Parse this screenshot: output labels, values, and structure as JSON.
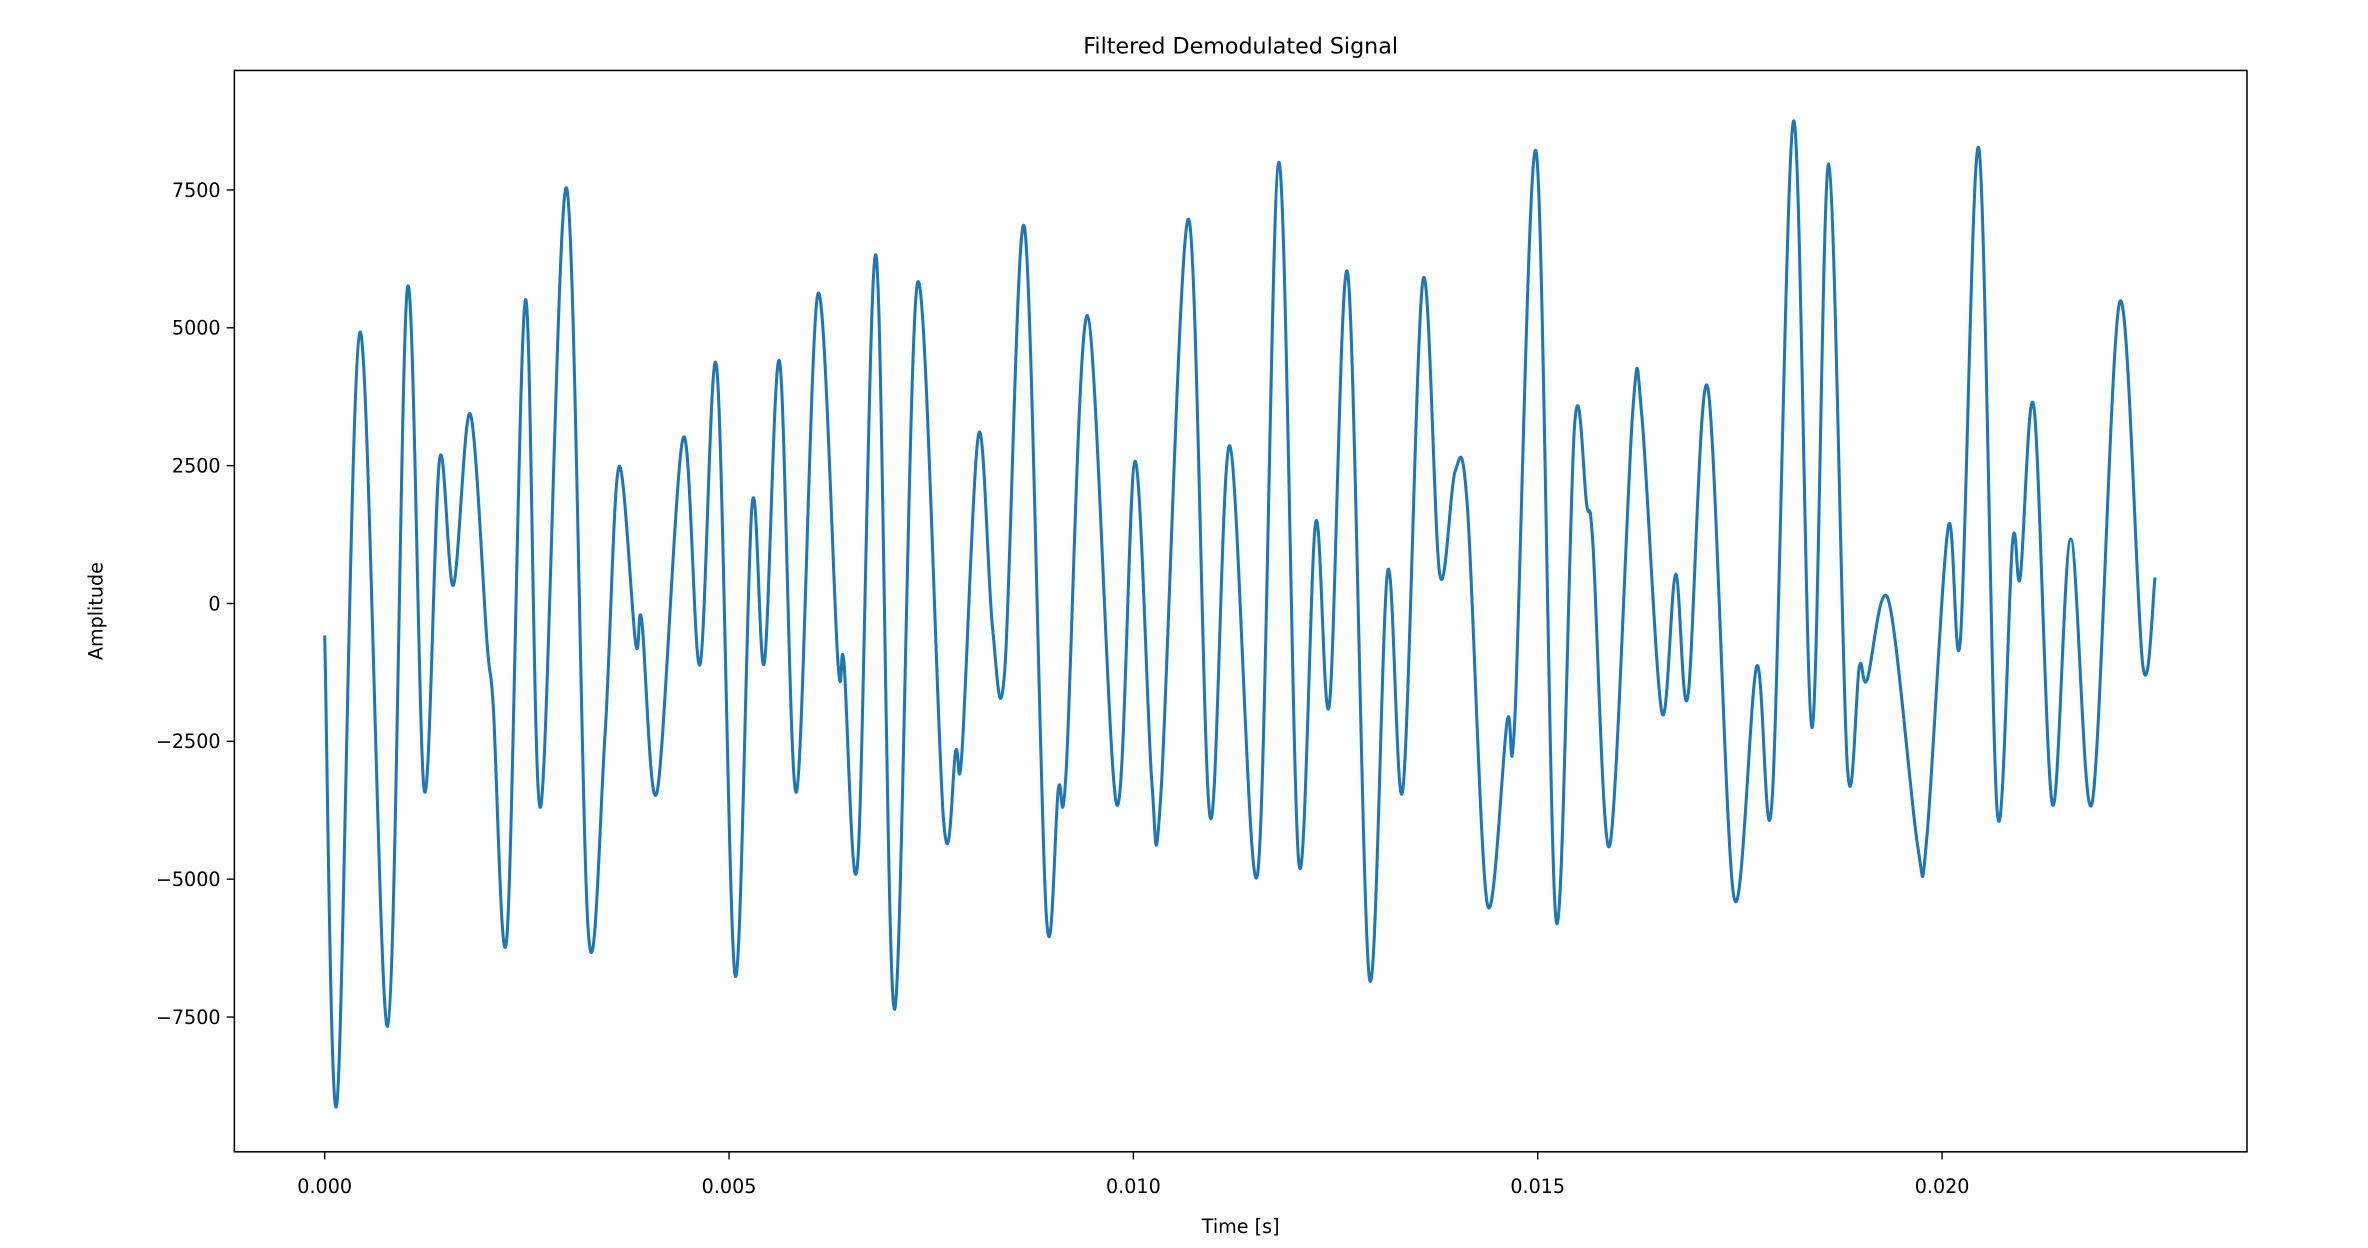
{
  "chart_data": {
    "type": "line",
    "title": "Filtered Demodulated Signal",
    "xlabel": "Time [s]",
    "ylabel": "Amplitude",
    "x": [
      0,
      0.000152,
      0.000436,
      0.000777,
      0.001023,
      0.001231,
      0.00142,
      0.001591,
      0.001799,
      0.002008,
      0.002083,
      0.002254,
      0.002481,
      0.00267,
      0.002992,
      0.003258,
      0.003466,
      0.003636,
      0.003845,
      0.00392,
      0.00411,
      0.004432,
      0.00464,
      0.004848,
      0.005076,
      0.005284,
      0.005436,
      0.005625,
      0.005833,
      0.006098,
      0.006345,
      0.00642,
      0.006591,
      0.006818,
      0.007045,
      0.00733,
      0.007652,
      0.007803,
      0.007879,
      0.008087,
      0.008258,
      0.008409,
      0.008655,
      0.00892,
      0.009072,
      0.009167,
      0.009432,
      0.009792,
      0.010019,
      0.010227,
      0.010341,
      0.010682,
      0.010947,
      0.011193,
      0.011534,
      0.011799,
      0.012045,
      0.012254,
      0.012424,
      0.012652,
      0.012917,
      0.013144,
      0.013333,
      0.01358,
      0.013788,
      0.013977,
      0.014129,
      0.014375,
      0.014621,
      0.014716,
      0.014981,
      0.015227,
      0.015455,
      0.015606,
      0.015682,
      0.01589,
      0.016174,
      0.016288,
      0.016534,
      0.016705,
      0.016856,
      0.017102,
      0.017424,
      0.017708,
      0.017898,
      0.018163,
      0.01839,
      0.018598,
      0.018826,
      0.018977,
      0.019072,
      0.019337,
      0.019697,
      0.019811,
      0.020076,
      0.020227,
      0.020455,
      0.020682,
      0.020871,
      0.020966,
      0.021136,
      0.021364,
      0.021591,
      0.021856,
      0.022197,
      0.022481,
      0.022633
    ],
    "series": [
      {
        "color": "#1f77b4",
        "values": [
          -580,
          -9060,
          4920,
          -7670,
          5720,
          -3390,
          2610,
          330,
          3440,
          -720,
          -1830,
          -6030,
          5500,
          -3690,
          7530,
          -5920,
          -2390,
          2470,
          -720,
          -300,
          -3420,
          3000,
          -1110,
          4280,
          -6750,
          1780,
          -1080,
          4390,
          -3420,
          5610,
          -1030,
          -1060,
          -4690,
          6310,
          -7360,
          5810,
          -3920,
          -2670,
          -2720,
          3080,
          -440,
          -1220,
          6810,
          -5580,
          -3360,
          -3080,
          5220,
          -3640,
          2580,
          -3220,
          -3440,
          6970,
          -3860,
          2860,
          -4920,
          8000,
          -4690,
          1470,
          -1830,
          5970,
          -6780,
          580,
          -3360,
          5860,
          530,
          2390,
          1780,
          -5440,
          -2140,
          -2110,
          8190,
          -5750,
          3220,
          1780,
          1080,
          -4390,
          3470,
          3390,
          -1970,
          530,
          -1690,
          3920,
          -5310,
          -1140,
          -3560,
          8750,
          -2250,
          7970,
          -2890,
          -1140,
          -1390,
          60,
          -4390,
          -4250,
          1390,
          -640,
          8250,
          -3780,
          1110,
          470,
          3560,
          -3640,
          1170,
          -3610,
          5470,
          -1110,
          470
        ]
      }
    ],
    "xlim": [
      -0.001117,
      0.02377
    ],
    "ylim": [
      -9944,
      9667
    ],
    "xticks": [
      {
        "value": 0,
        "label": "0.000"
      },
      {
        "value": 0.005,
        "label": "0.005"
      },
      {
        "value": 0.01,
        "label": "0.010"
      },
      {
        "value": 0.015,
        "label": "0.015"
      },
      {
        "value": 0.02,
        "label": "0.020"
      }
    ],
    "yticks": [
      {
        "value": -7500,
        "label": "−7500"
      },
      {
        "value": -5000,
        "label": "−5000"
      },
      {
        "value": -2500,
        "label": "−2500"
      },
      0,
      2500,
      5000,
      7500
    ]
  }
}
